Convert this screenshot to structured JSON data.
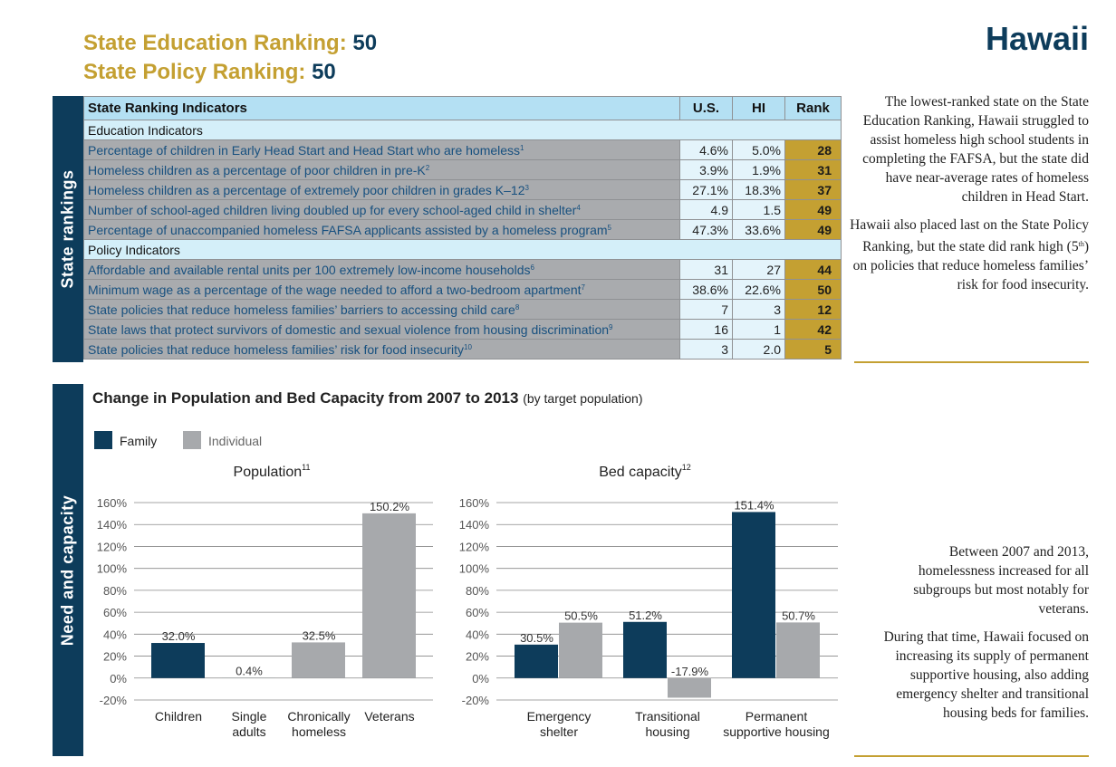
{
  "header": {
    "education_label": "State Education Ranking:",
    "education_rank": "50",
    "policy_label": "State Policy Ranking:",
    "policy_rank": "50",
    "state": "Hawaii"
  },
  "table": {
    "side_label": "State rankings",
    "columns": [
      "State Ranking Indicators",
      "U.S.",
      "HI",
      "Rank"
    ],
    "sections": [
      {
        "title": "Education Indicators",
        "rows": [
          {
            "label": "Percentage of children in Early Head Start and Head Start who are homeless",
            "note": "1",
            "us": "4.6%",
            "hi": "5.0%",
            "rank": "28"
          },
          {
            "label": "Homeless children as a percentage of poor children in pre-K",
            "note": "2",
            "us": "3.9%",
            "hi": "1.9%",
            "rank": "31"
          },
          {
            "label": "Homeless children as a percentage of extremely poor children in grades K–12",
            "note": "3",
            "us": "27.1%",
            "hi": "18.3%",
            "rank": "37"
          },
          {
            "label": "Number of school-aged children living doubled up for every school-aged child in shelter",
            "note": "4",
            "us": "4.9",
            "hi": "1.5",
            "rank": "49"
          },
          {
            "label": "Percentage of unaccompanied homeless FAFSA applicants assisted by a homeless program",
            "note": "5",
            "us": "47.3%",
            "hi": "33.6%",
            "rank": "49"
          }
        ]
      },
      {
        "title": "Policy Indicators",
        "rows": [
          {
            "label": "Affordable and available rental units per 100 extremely low-income households",
            "note": "6",
            "us": "31",
            "hi": "27",
            "rank": "44"
          },
          {
            "label": "Minimum wage as a percentage of the wage needed to afford a two-bedroom apartment",
            "note": "7",
            "us": "38.6%",
            "hi": "22.6%",
            "rank": "50"
          },
          {
            "label": "State policies that reduce homeless families’ barriers to accessing child care",
            "note": "8",
            "us": "7",
            "hi": "3",
            "rank": "12"
          },
          {
            "label": "State laws that protect survivors of domestic and sexual violence from housing discrimination",
            "note": "9",
            "us": "16",
            "hi": "1",
            "rank": "42"
          },
          {
            "label": "State policies that reduce homeless families’ risk for food insecurity",
            "note": "10",
            "us": "3",
            "hi": "2.0",
            "rank": "5"
          }
        ]
      }
    ]
  },
  "sidebar": {
    "top": {
      "p1": "The lowest-ranked state on the State Education Ranking, Hawaii struggled to assist homeless high school students in completing the FAFSA, but the state did have near-average rates of homeless children in Head Start.",
      "p2_before": "Hawaii also placed last on the State Policy Ranking, but the state did rank high (5",
      "p2_sup": "th",
      "p2_after": ") on policies that reduce homeless families’ risk for food insecurity."
    },
    "bottom": {
      "p1": "Between 2007 and 2013, homelessness increased for all subgroups but most notably for veterans.",
      "p2": "During that time, Hawaii focused on increasing its supply of permanent supportive housing, also adding emergency shelter and transitional housing beds for families."
    }
  },
  "charts_section": {
    "side_label": "Need and capacity",
    "title": "Change in Population and Bed Capacity from 2007 to 2013",
    "subtitle": "(by target population)"
  },
  "chart_data": [
    {
      "type": "bar",
      "title": "Population",
      "title_note": "11",
      "categories": [
        "Children",
        "Single\nadults",
        "Chronically\nhomeless",
        "Veterans"
      ],
      "series": [
        {
          "name": "Family",
          "color": "#0d3c5b",
          "values": [
            32.0,
            null,
            null,
            null
          ],
          "value_labels": [
            "32.0%",
            null,
            null,
            null
          ]
        },
        {
          "name": "Individual",
          "color": "#a7a9ac",
          "values": [
            null,
            0.4,
            32.5,
            150.2
          ],
          "value_labels": [
            null,
            "0.4%",
            "32.5%",
            "150.2%"
          ]
        }
      ],
      "ylim": [
        -20,
        160
      ],
      "yticks": [
        {
          "value": -20,
          "label": "-20%"
        },
        {
          "value": 0,
          "label": "0%"
        },
        {
          "value": 20,
          "label": "20%"
        },
        {
          "value": 40,
          "label": "40%"
        },
        {
          "value": 60,
          "label": "60%"
        },
        {
          "value": 80,
          "label": "80%"
        },
        {
          "value": 100,
          "label": "100%"
        },
        {
          "value": 120,
          "label": "120%"
        },
        {
          "value": 140,
          "label": "140%"
        },
        {
          "value": 160,
          "label": "160%"
        }
      ],
      "grid": true
    },
    {
      "type": "bar",
      "title": "Bed capacity",
      "title_note": "12",
      "categories": [
        "Emergency\nshelter",
        "Transitional\nhousing",
        "Permanent\nsupportive housing"
      ],
      "series": [
        {
          "name": "Family",
          "color": "#0d3c5b",
          "values": [
            30.5,
            51.2,
            151.4
          ],
          "value_labels": [
            "30.5%",
            "51.2%",
            "151.4%"
          ]
        },
        {
          "name": "Individual",
          "color": "#a7a9ac",
          "values": [
            50.5,
            -17.9,
            50.7
          ],
          "value_labels": [
            "50.5%",
            "-17.9%",
            "50.7%"
          ]
        }
      ],
      "ylim": [
        -20,
        160
      ],
      "yticks": [
        {
          "value": -20,
          "label": "-20%"
        },
        {
          "value": 0,
          "label": "0%"
        },
        {
          "value": 20,
          "label": "20%"
        },
        {
          "value": 40,
          "label": "40%"
        },
        {
          "value": 60,
          "label": "60%"
        },
        {
          "value": 80,
          "label": "80%"
        },
        {
          "value": 100,
          "label": "100%"
        },
        {
          "value": 120,
          "label": "120%"
        },
        {
          "value": 140,
          "label": "140%"
        },
        {
          "value": 160,
          "label": "160%"
        }
      ],
      "grid": true
    }
  ]
}
